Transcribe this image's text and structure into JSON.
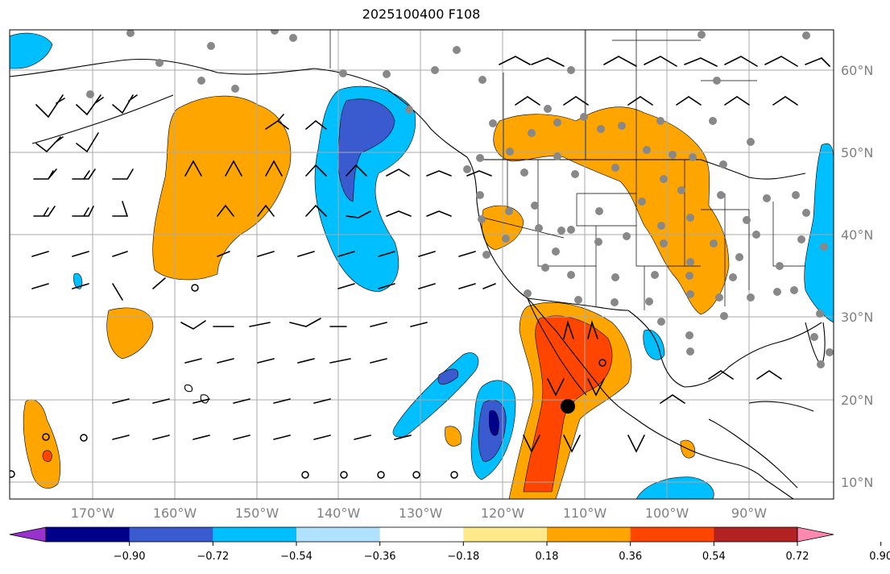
{
  "title": "2025100400 F108",
  "longitude_labels": [
    "170°W",
    "160°W",
    "150°W",
    "140°W",
    "130°W",
    "120°W",
    "110°W",
    "100°W",
    "90°W"
  ],
  "latitude_labels": [
    "60°N",
    "50°N",
    "40°N",
    "30°N",
    "20°N",
    "10°N"
  ],
  "colorbar": {
    "ticks": [
      "−0.90",
      "−0.72",
      "−0.54",
      "−0.36",
      "−0.18",
      "0.18",
      "0.36",
      "0.54",
      "0.72",
      "0.90"
    ],
    "colors": [
      "#9932cc",
      "#00008b",
      "#3a5bcf",
      "#00bfff",
      "#b0e2ff",
      "#ffffff",
      "#ffe98a",
      "#ffa500",
      "#ff4500",
      "#b22222",
      "#ff88b0"
    ]
  },
  "colors": {
    "land_outline": "#000000",
    "grid": "#aaaaaa",
    "gray_dots": "#888888",
    "barbs": "#000000"
  }
}
